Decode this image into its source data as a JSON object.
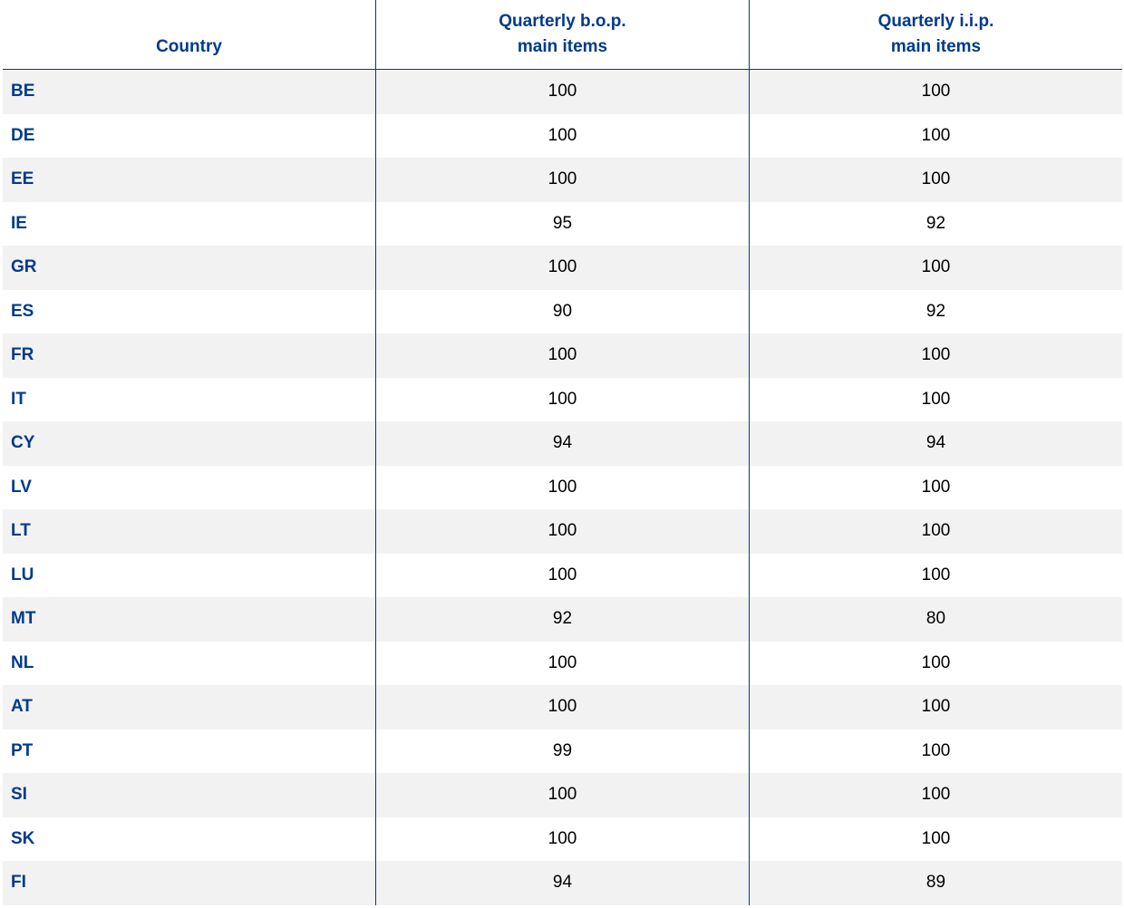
{
  "table": {
    "headers": [
      "Country",
      "Quarterly b.o.p.\nmain items",
      "Quarterly i.i.p.\nmain items"
    ],
    "header_lines": [
      [
        "Country"
      ],
      [
        "Quarterly b.o.p.",
        "main items"
      ],
      [
        "Quarterly i.i.p.",
        "main items"
      ]
    ],
    "rows": [
      [
        "BE",
        "100",
        "100"
      ],
      [
        "DE",
        "100",
        "100"
      ],
      [
        "EE",
        "100",
        "100"
      ],
      [
        "IE",
        "95",
        "92"
      ],
      [
        "GR",
        "100",
        "100"
      ],
      [
        "ES",
        "90",
        "92"
      ],
      [
        "FR",
        "100",
        "100"
      ],
      [
        "IT",
        "100",
        "100"
      ],
      [
        "CY",
        "94",
        "94"
      ],
      [
        "LV",
        "100",
        "100"
      ],
      [
        "LT",
        "100",
        "100"
      ],
      [
        "LU",
        "100",
        "100"
      ],
      [
        "MT",
        "92",
        "80"
      ],
      [
        "NL",
        "100",
        "100"
      ],
      [
        "AT",
        "100",
        "100"
      ],
      [
        "PT",
        "99",
        "100"
      ],
      [
        "SI",
        "100",
        "100"
      ],
      [
        "SK",
        "100",
        "100"
      ],
      [
        "FI",
        "94",
        "89"
      ]
    ]
  },
  "colors": {
    "accent": "#003a8c",
    "stripe": "#f2f2f2"
  }
}
